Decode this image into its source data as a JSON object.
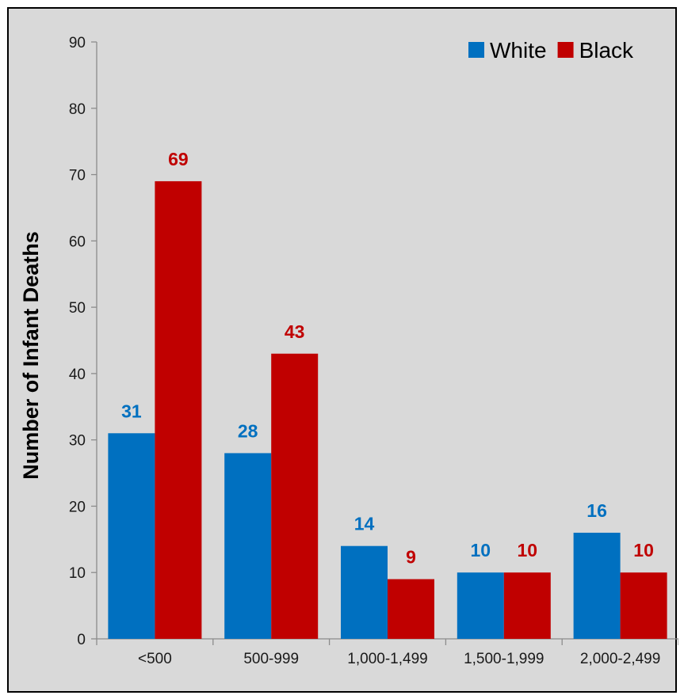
{
  "chart_data": {
    "type": "bar",
    "title": "",
    "xlabel": "",
    "ylabel": "Number of Infant Deaths",
    "categories": [
      "<500",
      "500-999",
      "1,000-1,499",
      "1,500-1,999",
      "2,000-2,499"
    ],
    "series": [
      {
        "name": "White",
        "color": "#0070c0",
        "values": [
          31,
          28,
          14,
          10,
          16
        ]
      },
      {
        "name": "Black",
        "color": "#c00000",
        "values": [
          69,
          43,
          9,
          10,
          10
        ]
      }
    ],
    "ylim": [
      0,
      90
    ],
    "yticks": [
      0,
      10,
      20,
      30,
      40,
      50,
      60,
      70,
      80,
      90
    ],
    "grid": false,
    "legend_position": "top-right",
    "data_labels": true
  }
}
